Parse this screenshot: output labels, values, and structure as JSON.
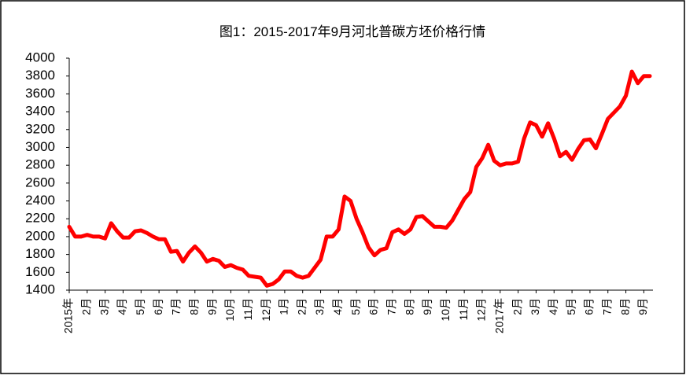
{
  "chart_data": {
    "type": "line",
    "title": "图1：2015-2017年9月河北普碳方坯价格行情",
    "categories": [
      "2015年",
      null,
      null,
      "2月",
      null,
      null,
      "3月",
      null,
      null,
      "4月",
      null,
      null,
      "5月",
      null,
      null,
      "6月",
      null,
      null,
      "7月",
      null,
      null,
      "8月",
      null,
      null,
      "9月",
      null,
      null,
      "10月",
      null,
      null,
      "11月",
      null,
      null,
      "12月",
      null,
      null,
      "1月",
      null,
      null,
      "2月",
      null,
      null,
      "3月",
      null,
      null,
      "4月",
      null,
      null,
      "5月",
      null,
      null,
      "6月",
      null,
      null,
      "7月",
      null,
      null,
      "8月",
      null,
      null,
      "9月",
      null,
      null,
      "10月",
      null,
      null,
      "11月",
      null,
      null,
      "12月",
      null,
      null,
      "2017年",
      null,
      null,
      "2月",
      null,
      null,
      "3月",
      null,
      null,
      "4月",
      null,
      null,
      "5月",
      null,
      null,
      "6月",
      null,
      null,
      "7月",
      null,
      null,
      "8月",
      null,
      null,
      "9月",
      null
    ],
    "series": [
      {
        "name": "河北普碳方坯",
        "color": "#ff0000",
        "values": [
          2110,
          2000,
          2000,
          2020,
          2000,
          2000,
          1980,
          2150,
          2060,
          1990,
          1990,
          2060,
          2070,
          2040,
          2000,
          1970,
          1970,
          1830,
          1840,
          1720,
          1820,
          1890,
          1820,
          1720,
          1750,
          1730,
          1660,
          1680,
          1650,
          1630,
          1560,
          1550,
          1540,
          1450,
          1470,
          1520,
          1610,
          1610,
          1560,
          1540,
          1560,
          1650,
          1740,
          2000,
          2000,
          2080,
          2450,
          2400,
          2200,
          2050,
          1880,
          1790,
          1850,
          1870,
          2050,
          2080,
          2030,
          2080,
          2220,
          2230,
          2170,
          2110,
          2110,
          2100,
          2180,
          2300,
          2420,
          2500,
          2780,
          2880,
          3030,
          2850,
          2800,
          2820,
          2820,
          2840,
          3100,
          3280,
          3250,
          3120,
          3270,
          3100,
          2900,
          2950,
          2860,
          2980,
          3080,
          3090,
          2990,
          3150,
          3320,
          3390,
          3460,
          3580,
          3850,
          3720,
          3800,
          3800
        ]
      }
    ],
    "ylim": [
      1400,
      4000
    ],
    "yticks": [
      1400,
      1600,
      1800,
      2000,
      2200,
      2400,
      2600,
      2800,
      3000,
      3200,
      3400,
      3600,
      3800,
      4000
    ]
  }
}
